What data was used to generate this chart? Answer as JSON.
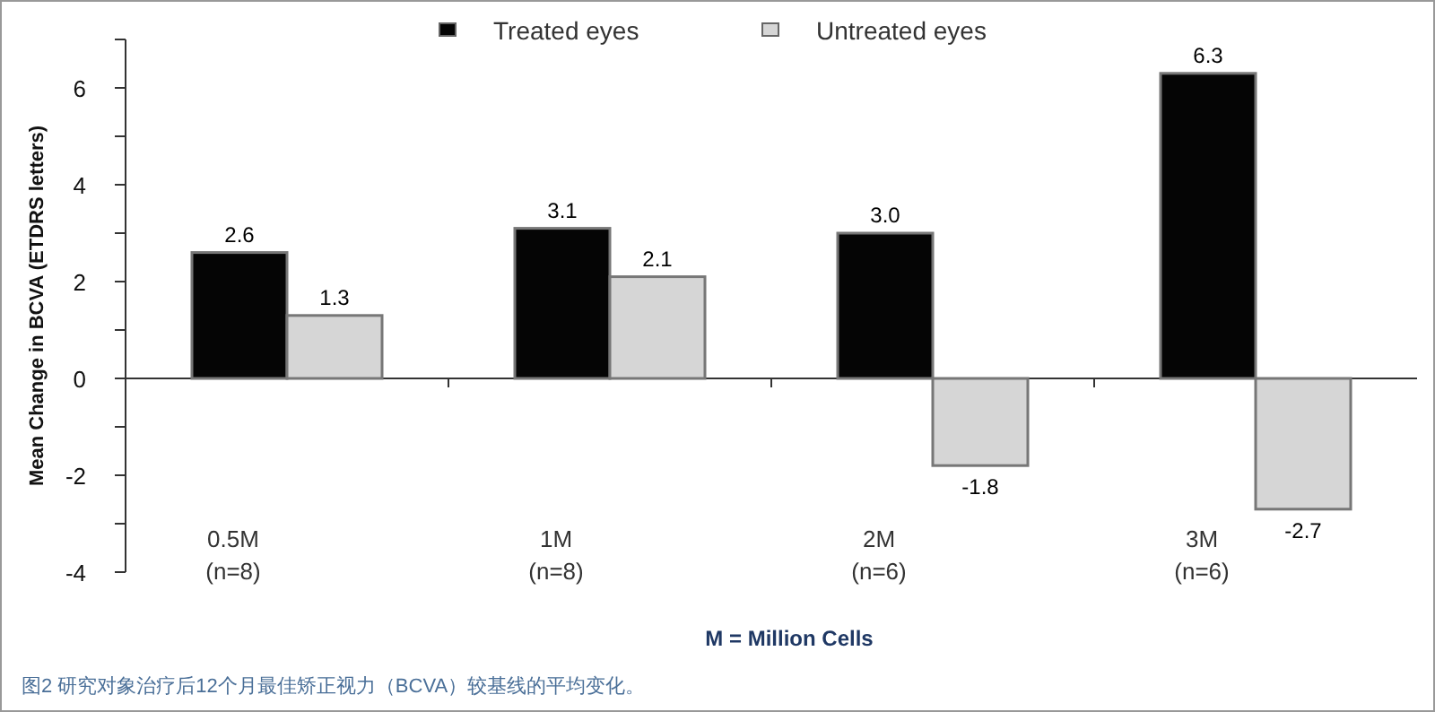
{
  "chart_data": {
    "type": "bar",
    "ylabel": "Mean Change in BCVA (ETDRS letters)",
    "xlabel": "M = Million Cells",
    "categories": [
      "0.5M\n(n=8)",
      "1M\n(n=8)",
      "2M\n(n=6)",
      "3M\n(n=6)"
    ],
    "series": [
      {
        "name": "Treated eyes",
        "color": "#050505",
        "values": [
          2.6,
          3.1,
          3.0,
          6.3
        ],
        "value_labels": [
          "2.6",
          "3.1",
          "3.0",
          "6.3"
        ]
      },
      {
        "name": "Untreated eyes",
        "color": "#d6d6d6",
        "values": [
          1.3,
          2.1,
          -1.8,
          -2.7
        ],
        "value_labels": [
          "1.3",
          "2.1",
          "-1.8",
          "-2.7"
        ]
      }
    ],
    "ylim": [
      -4,
      7
    ],
    "yticks": [
      -4,
      {
        "value": -3,
        "label": null
      },
      -2,
      {
        "value": -1,
        "label": null
      },
      0,
      {
        "value": 1,
        "label": null
      },
      2,
      {
        "value": 3,
        "label": null
      },
      4,
      {
        "value": 5,
        "label": null
      },
      6,
      {
        "value": 7,
        "label": null
      }
    ],
    "legend": "top",
    "annotations": [
      "图2 研究对象治疗后12个月最佳矫正视力（BCVA）较基线的平均变化。"
    ]
  }
}
